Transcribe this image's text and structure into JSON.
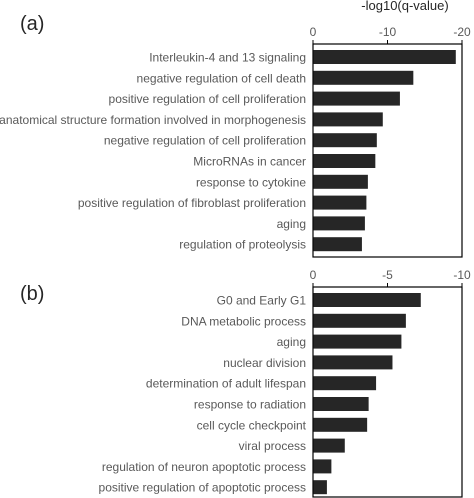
{
  "figure": {
    "axis_title": "-log10(q-value)"
  },
  "colors": {
    "bar": "#262626",
    "text": "#595959",
    "panel_label": "#262626",
    "frame": "#000000"
  },
  "chart_data": [
    {
      "type": "bar",
      "orientation": "horizontal",
      "panel_label": "(a)",
      "xlabel": "-log10(q-value)",
      "xlim": [
        0,
        -20
      ],
      "ticks": [
        0,
        -10,
        -20
      ],
      "tick_labels": [
        "0",
        "-10",
        "-20"
      ],
      "grid": false,
      "categories": [
        "Interleukin-4 and 13 signaling",
        "negative regulation of cell death",
        "positive regulation of cell proliferation",
        "anatomical structure formation involved in morphogenesis",
        "negative regulation of cell proliferation",
        "MicroRNAs in cancer",
        "response to cytokine",
        "positive regulation of fibroblast proliferation",
        "aging",
        "regulation of proteolysis"
      ],
      "values": [
        -19.1,
        -13.4,
        -11.6,
        -9.3,
        -8.5,
        -8.3,
        -7.3,
        -7.1,
        -6.9,
        -6.5
      ]
    },
    {
      "type": "bar",
      "orientation": "horizontal",
      "panel_label": "(b)",
      "xlim": [
        0,
        -10
      ],
      "ticks": [
        0,
        -5,
        -10
      ],
      "tick_labels": [
        "0",
        "-5",
        "-10"
      ],
      "grid": false,
      "categories": [
        "G0 and Early G1",
        "DNA metabolic process",
        "aging",
        "nuclear division",
        "determination of adult lifespan",
        "response to radiation",
        "cell cycle checkpoint",
        "viral process",
        "regulation of neuron apoptotic process",
        "positive regulation of apoptotic process"
      ],
      "values": [
        -7.2,
        -6.2,
        -5.9,
        -5.3,
        -4.2,
        -3.7,
        -3.6,
        -2.1,
        -1.2,
        -0.9
      ]
    }
  ]
}
